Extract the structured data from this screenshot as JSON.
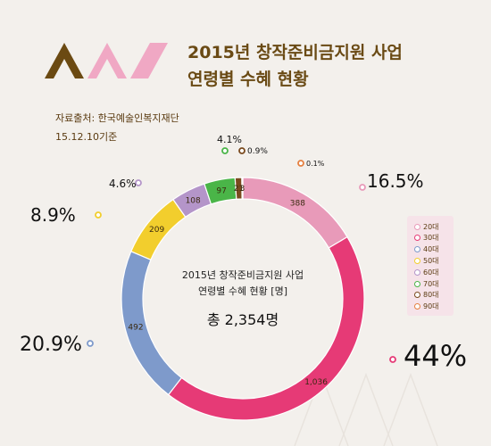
{
  "header": {
    "title_line1": "2015년 창작준비금지원 사업",
    "title_line2": "연령별 수혜 현황",
    "source_line1": "자료출처: 한국예술인복지재단",
    "source_line2": "15.12.10기준"
  },
  "center": {
    "line1": "2015년 창작준비금지원 사업",
    "line2": "연령별 수혜 현황 [명]",
    "total": "총 2,354명"
  },
  "colors": {
    "background": "#f3f0ec",
    "title": "#6a4a14",
    "logo_brown": "#6b4a12",
    "logo_pink": "#f0a8c4"
  },
  "chart_data": {
    "type": "pie",
    "style": "donut",
    "categories": [
      "20대",
      "30대",
      "40대",
      "50대",
      "60대",
      "70대",
      "80대",
      "90대"
    ],
    "values": [
      388,
      1036,
      492,
      209,
      108,
      97,
      21,
      3
    ],
    "value_labels": [
      "388",
      "1,036",
      "492",
      "209",
      "108",
      "97",
      "21",
      "3"
    ],
    "percent_labels": [
      "16.5%",
      "44%",
      "20.9%",
      "8.9%",
      "4.6%",
      "4.1%",
      "0.9%",
      "0.1%"
    ],
    "colors": [
      "#e89ab9",
      "#e63a76",
      "#7e9acb",
      "#f2ce2d",
      "#b495c9",
      "#4ab548",
      "#7a4a1e",
      "#e58040"
    ],
    "legend_position": "right"
  }
}
